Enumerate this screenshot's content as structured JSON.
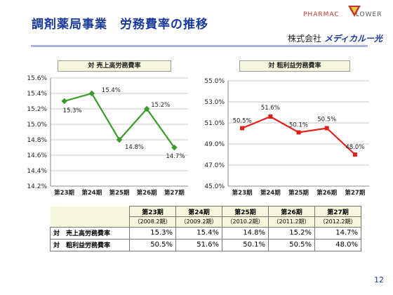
{
  "slide": {
    "title": "調剤薬局事業　労務費率の推移",
    "page_number": "12",
    "logo_text_red": "PHARMAC",
    "logo_text_gray": "LOWER",
    "company_prefix": "株式会社",
    "company_name": "メディカルー光"
  },
  "colors": {
    "green": "#3a9a2a",
    "red": "#e0201c",
    "title_blue": "#1a3a9c",
    "header_bg": "#f6f6dc"
  },
  "chart_data": [
    {
      "type": "line",
      "title": "対 売上高労務費率",
      "categories": [
        "第23期",
        "第24期",
        "第25期",
        "第26期",
        "第27期"
      ],
      "values": [
        15.3,
        15.4,
        14.8,
        15.2,
        14.7
      ],
      "data_labels": [
        "15.3%",
        "15.4%",
        "14.8%",
        "15.2%",
        "14.7%"
      ],
      "ylim": [
        14.2,
        15.6
      ],
      "yticks": [
        "15.6%",
        "15.4%",
        "15.2%",
        "15.0%",
        "14.8%",
        "14.6%",
        "14.4%",
        "14.2%"
      ],
      "grid": true,
      "color": "#3a9a2a"
    },
    {
      "type": "line",
      "title": "対 粗利益労務費率",
      "categories": [
        "第23期",
        "第24期",
        "第25期",
        "第26期",
        "第27期"
      ],
      "values": [
        50.5,
        51.6,
        50.1,
        50.5,
        48.0
      ],
      "data_labels": [
        "50.5%",
        "51.6%",
        "50.1%",
        "50.5%",
        "48.0%"
      ],
      "ylim": [
        45.0,
        55.0
      ],
      "yticks": [
        "55.0%",
        "53.0%",
        "51.0%",
        "49.0%",
        "47.0%",
        "45.0%"
      ],
      "grid": true,
      "color": "#e0201c"
    }
  ],
  "table": {
    "periods": [
      "第23期",
      "第24期",
      "第25期",
      "第26期",
      "第27期"
    ],
    "dates": [
      "（2008.2期）",
      "（2009.2期）",
      "（2010.2期）",
      "（2011.2期）",
      "（2012.2期）"
    ],
    "rows": [
      {
        "label": "対　売上高労務費率",
        "values": [
          "15.3%",
          "15.4%",
          "14.8%",
          "15.2%",
          "14.7%"
        ]
      },
      {
        "label": "対　粗利益労務費率",
        "values": [
          "50.5%",
          "51.6%",
          "50.1%",
          "50.5%",
          "48.0%"
        ]
      }
    ]
  }
}
